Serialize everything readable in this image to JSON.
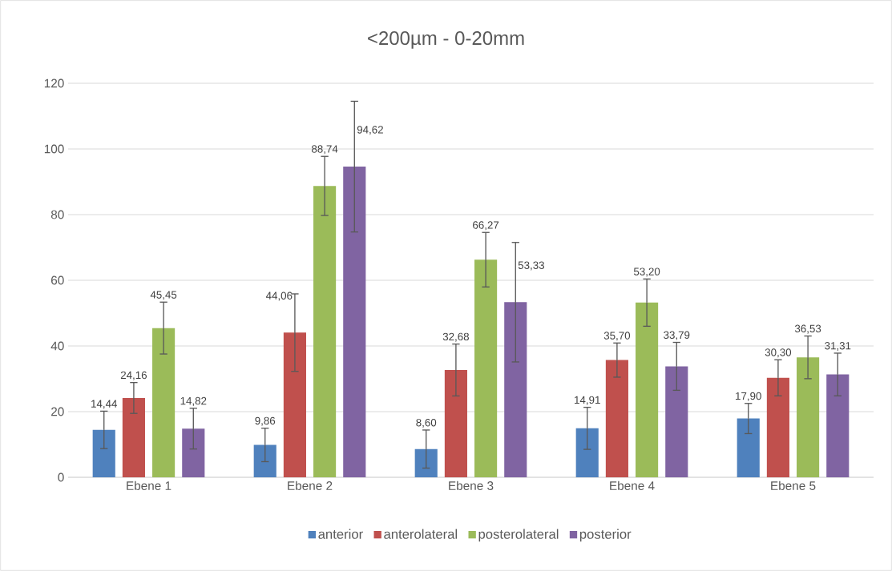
{
  "chart_data": {
    "type": "bar",
    "title": "<200µm - 0-20mm",
    "categories": [
      "Ebene 1",
      "Ebene 2",
      "Ebene 3",
      "Ebene 4",
      "Ebene 5"
    ],
    "series": [
      {
        "name": "anterior",
        "color": "#4f81bd",
        "values": [
          14.44,
          9.86,
          8.6,
          14.91,
          17.9
        ],
        "errors": [
          5.7,
          5.1,
          5.8,
          6.4,
          4.6
        ],
        "value_labels": [
          "14,44",
          "9,86",
          "8,60",
          "14,91",
          "17,90"
        ]
      },
      {
        "name": "anterolateral",
        "color": "#c0504d",
        "values": [
          24.16,
          44.06,
          32.68,
          35.7,
          30.3
        ],
        "errors": [
          4.7,
          11.8,
          7.9,
          5.2,
          5.5
        ],
        "value_labels": [
          "24,16",
          "44,06",
          "32,68",
          "35,70",
          "30,30"
        ]
      },
      {
        "name": "posterolateral",
        "color": "#9bbb59",
        "values": [
          45.45,
          88.74,
          66.27,
          53.2,
          36.53
        ],
        "errors": [
          7.9,
          9.0,
          8.3,
          7.2,
          6.5
        ],
        "value_labels": [
          "45,45",
          "88,74",
          "66,27",
          "53,20",
          "36,53"
        ]
      },
      {
        "name": "posterior",
        "color": "#8064a2",
        "values": [
          14.82,
          94.62,
          53.33,
          33.79,
          31.31
        ],
        "errors": [
          6.2,
          19.9,
          18.2,
          7.3,
          6.5
        ],
        "value_labels": [
          "14,82",
          "94,62",
          "53,33",
          "33,79",
          "31,31"
        ]
      }
    ],
    "ylim": [
      0,
      120
    ],
    "yticks": [
      0,
      20,
      40,
      60,
      80,
      100,
      120
    ],
    "grid": "y",
    "legend": "bottom"
  }
}
